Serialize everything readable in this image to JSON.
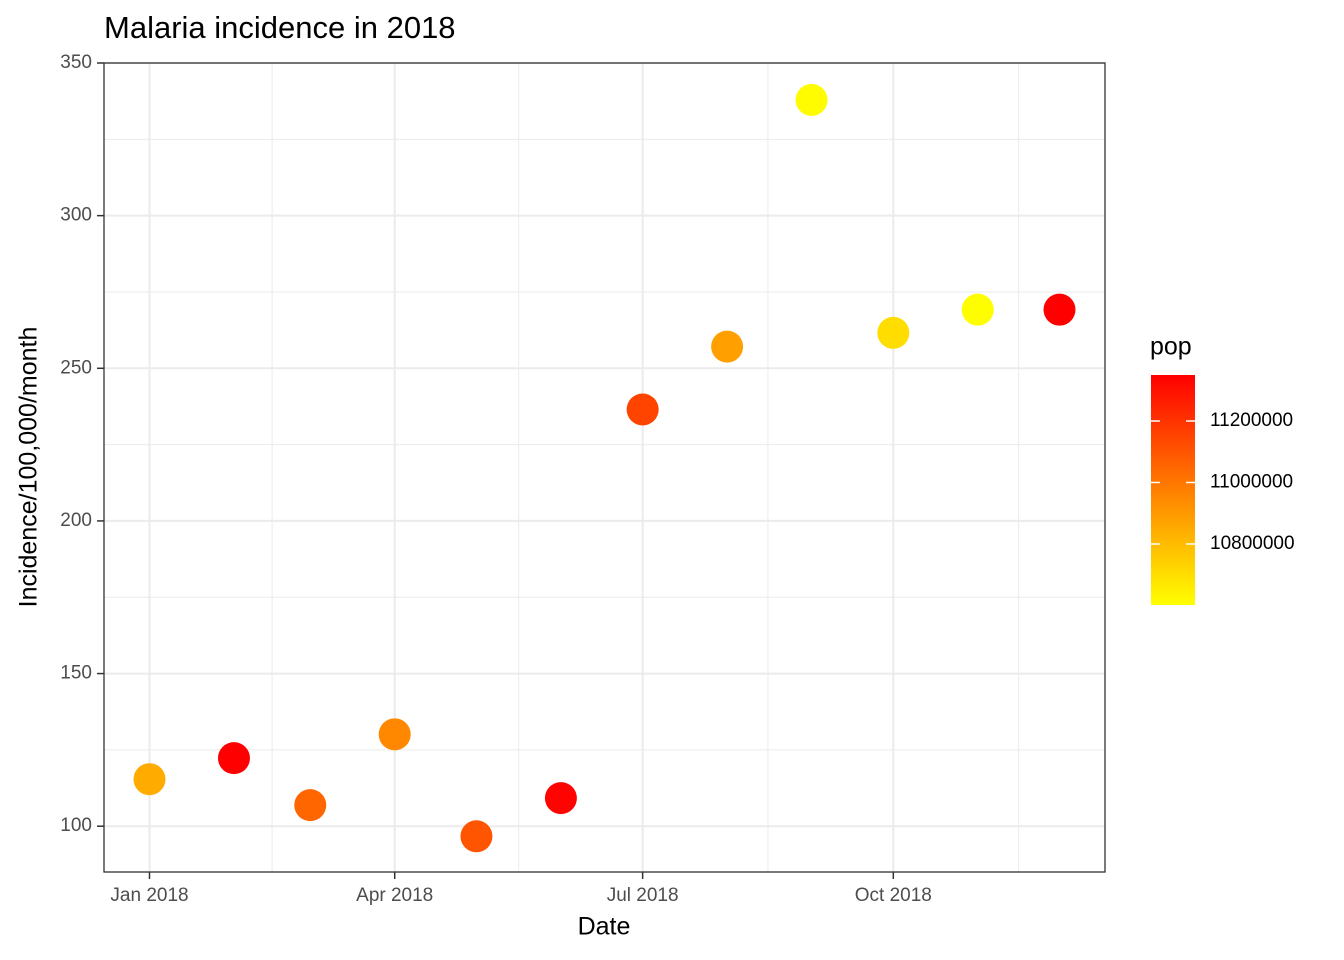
{
  "chart_data": {
    "type": "scatter",
    "title": "Malaria incidence in 2018",
    "x_label": "Date",
    "y_label": "Incidence/100,000/month",
    "x": [
      "2018-01",
      "2018-02",
      "2018-03",
      "2018-04",
      "2018-05",
      "2018-06",
      "2018-07",
      "2018-08",
      "2018-09",
      "2018-10",
      "2018-11",
      "2018-12"
    ],
    "values": [
      115.4,
      122.3,
      106.9,
      130.1,
      96.7,
      109.2,
      236.5,
      257.1,
      337.9,
      261.6,
      269.2,
      269.2
    ],
    "color_values": [
      10848000,
      11349000,
      11050000,
      10950000,
      11100000,
      11340000,
      11150000,
      10880000,
      10610000,
      10700000,
      10605000,
      11349000
    ],
    "xticks": [
      {
        "value": "2018-01",
        "label": "Jan 2018"
      },
      {
        "value": "2018-04",
        "label": "Apr 2018"
      },
      {
        "value": "2018-07",
        "label": "Jul 2018"
      },
      {
        "value": "2018-10",
        "label": "Oct 2018"
      }
    ],
    "ylim": [
      85,
      350
    ],
    "yticks": [
      100,
      150,
      200,
      250,
      300,
      350
    ],
    "grid": true,
    "colorbar": {
      "title": "pop",
      "lim": [
        10601600,
        11349600
      ],
      "ticks": [
        10800000,
        11000000,
        11200000
      ],
      "colors": [
        "#FFFF00",
        "#FF0000"
      ]
    }
  }
}
